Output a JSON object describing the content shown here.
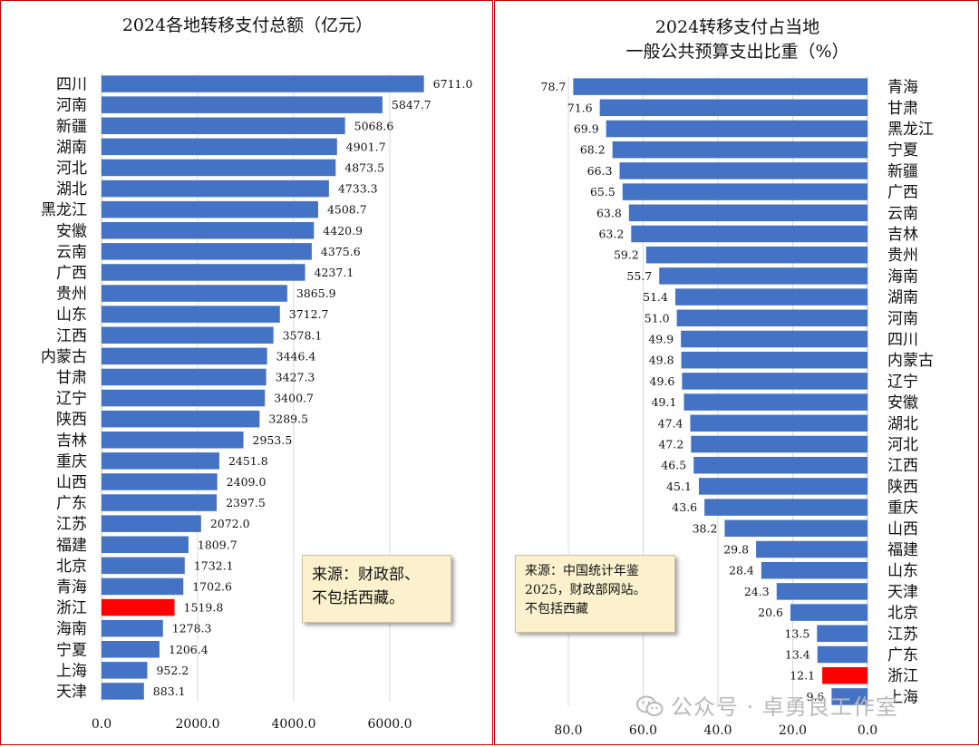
{
  "chart_data": [
    {
      "type": "bar",
      "orientation": "horizontal",
      "title": "2024各地转移支付总额（亿元）",
      "categories": [
        "四川",
        "河南",
        "新疆",
        "湖南",
        "河北",
        "湖北",
        "黑龙江",
        "安徽",
        "云南",
        "广西",
        "贵州",
        "山东",
        "江西",
        "内蒙古",
        "甘肃",
        "辽宁",
        "陕西",
        "吉林",
        "重庆",
        "山西",
        "广东",
        "江苏",
        "福建",
        "北京",
        "青海",
        "浙江",
        "海南",
        "宁夏",
        "上海",
        "天津"
      ],
      "values": [
        6711.0,
        5847.7,
        5068.6,
        4901.7,
        4873.5,
        4733.3,
        4508.7,
        4420.9,
        4375.6,
        4237.1,
        3865.9,
        3712.7,
        3578.1,
        3446.4,
        3427.3,
        3400.7,
        3289.5,
        2953.5,
        2451.8,
        2409.0,
        2397.5,
        2072.0,
        1809.7,
        1732.1,
        1702.6,
        1519.8,
        1278.3,
        1206.4,
        952.2,
        883.1
      ],
      "value_labels": [
        "6711.0",
        "5847.7",
        "5068.6",
        "4901.7",
        "4873.5",
        "4733.3",
        "4508.7",
        "4420.9",
        "4375.6",
        "4237.1",
        "3865.9",
        "3712.7",
        "3578.1",
        "3446.4",
        "3427.3",
        "3400.7",
        "3289.5",
        "2953.5",
        "2451.8",
        "2409.0",
        "2397.5",
        "2072.0",
        "1809.7",
        "1732.1",
        "1702.6",
        "1519.8",
        "1278.3",
        "1206.4",
        "952.2",
        "883.1"
      ],
      "highlight": "浙江",
      "xlim": [
        0,
        8000
      ],
      "xticks": [
        0,
        2000,
        4000,
        6000
      ],
      "xtick_labels": [
        "0.0",
        "2000.0",
        "4000.0",
        "6000.0"
      ],
      "grid": true,
      "note": [
        "来源：财政部、",
        "不包括西藏。"
      ]
    },
    {
      "type": "bar",
      "orientation": "horizontal",
      "axis_direction": "reversed",
      "title": [
        "2024转移支付占当地",
        "一般公共预算支出比重（%）"
      ],
      "categories": [
        "青海",
        "甘肃",
        "黑龙江",
        "宁夏",
        "新疆",
        "广西",
        "云南",
        "吉林",
        "贵州",
        "海南",
        "湖南",
        "河南",
        "四川",
        "内蒙古",
        "辽宁",
        "安徽",
        "湖北",
        "河北",
        "江西",
        "陕西",
        "重庆",
        "山西",
        "福建",
        "山东",
        "天津",
        "北京",
        "江苏",
        "广东",
        "浙江",
        "上海"
      ],
      "values": [
        78.7,
        71.6,
        69.9,
        68.2,
        66.3,
        65.5,
        63.8,
        63.2,
        59.2,
        55.7,
        51.4,
        51.0,
        49.9,
        49.8,
        49.6,
        49.1,
        47.4,
        47.2,
        46.5,
        45.1,
        43.6,
        38.2,
        29.8,
        28.4,
        24.3,
        20.6,
        13.5,
        13.4,
        12.1,
        9.6
      ],
      "value_labels": [
        "78.7",
        "71.6",
        "69.9",
        "68.2",
        "66.3",
        "65.5",
        "63.8",
        "63.2",
        "59.2",
        "55.7",
        "51.4",
        "51.0",
        "49.9",
        "49.8",
        "49.6",
        "49.1",
        "47.4",
        "47.2",
        "46.5",
        "45.1",
        "43.6",
        "38.2",
        "29.8",
        "28.4",
        "24.3",
        "20.6",
        "13.5",
        "13.4",
        "12.1",
        "9.6"
      ],
      "highlight": "浙江",
      "xlim": [
        0,
        80
      ],
      "xticks": [
        80,
        60,
        40,
        20,
        0
      ],
      "xtick_labels": [
        "80.0",
        "60.0",
        "40.0",
        "20.0",
        "0.0"
      ],
      "grid": true,
      "note": [
        "来源：中国统计年鉴",
        "2025，财政部网站。",
        "不包括西藏"
      ]
    }
  ],
  "colors": {
    "bar": "#4472c4",
    "highlight": "#ff0000",
    "grid": "#d9d9d9",
    "note_bg": "#fbf1cc",
    "frame": "#c00000"
  },
  "watermark": {
    "icon": "wechat-icon",
    "text": "公众号 · 卓勇良工作室"
  }
}
